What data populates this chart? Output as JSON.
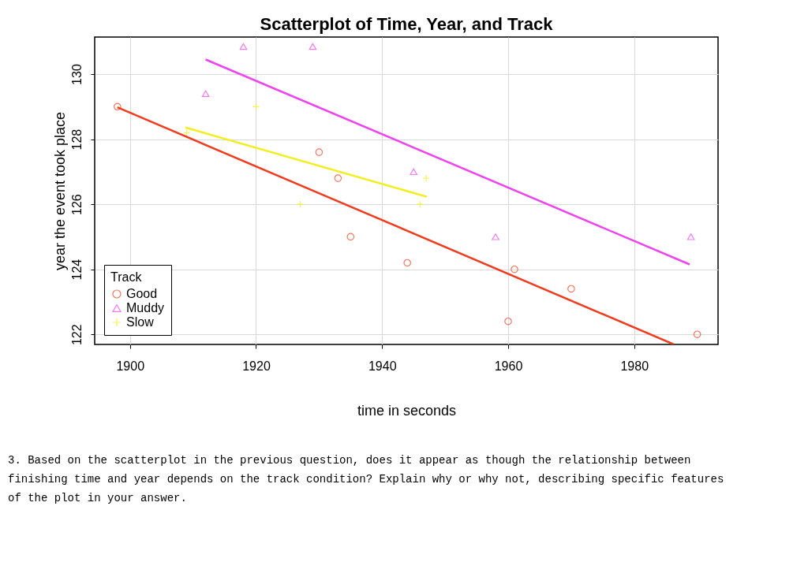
{
  "chart_data": {
    "type": "scatter",
    "title": "Scatterplot of Time, Year, and Track",
    "xlabel": "time in seconds",
    "ylabel": "year the event took place",
    "legend_title": "Track",
    "xlim": [
      1894.4,
      1993.3
    ],
    "ylim": [
      121.69,
      131.14
    ],
    "xticks": [
      1900,
      1920,
      1940,
      1960,
      1980
    ],
    "yticks": [
      122,
      124,
      126,
      128,
      130
    ],
    "grid": true,
    "legend": "bottom left",
    "series": [
      {
        "name": "Good",
        "color": "#f03c1e",
        "marker": "circle",
        "x": [
          1898,
          1930,
          1933,
          1935,
          1944,
          1961,
          1970,
          1960,
          1990
        ],
        "values": [
          129.0,
          127.6,
          126.8,
          125.0,
          124.2,
          124.0,
          123.4,
          122.4,
          122.0
        ]
      },
      {
        "name": "Muddy",
        "color": "#ee44ee",
        "marker": "triangle",
        "x": [
          1918,
          1929,
          1912,
          1945,
          1958,
          1989
        ],
        "values": [
          130.85,
          130.85,
          129.4,
          127.0,
          125.0,
          125.0
        ]
      },
      {
        "name": "Slow",
        "color": "#f2ee1a",
        "marker": "cross",
        "x": [
          1920,
          1909,
          1927,
          1946,
          1947
        ],
        "values": [
          129.0,
          128.2,
          126.0,
          126.0,
          126.8
        ]
      },
      {
        "type": "line",
        "color": "#f03c1e",
        "x": [
          1898,
          1986.3
        ],
        "values": [
          128.98,
          121.69
        ]
      },
      {
        "type": "line",
        "color": "#ee44ee",
        "x": [
          1912,
          1988.8
        ],
        "values": [
          130.45,
          124.15
        ]
      },
      {
        "type": "line",
        "color": "#f2ee1a",
        "x": [
          1908.8,
          1947.1
        ],
        "values": [
          128.36,
          126.23
        ]
      }
    ],
    "annotations": [
      "3. Based on the scatterplot in the previous question, does it appear as though the relationship between finishing time and year depends on the track condition? Explain why or why not, describing specific features of the plot in your answer."
    ]
  }
}
